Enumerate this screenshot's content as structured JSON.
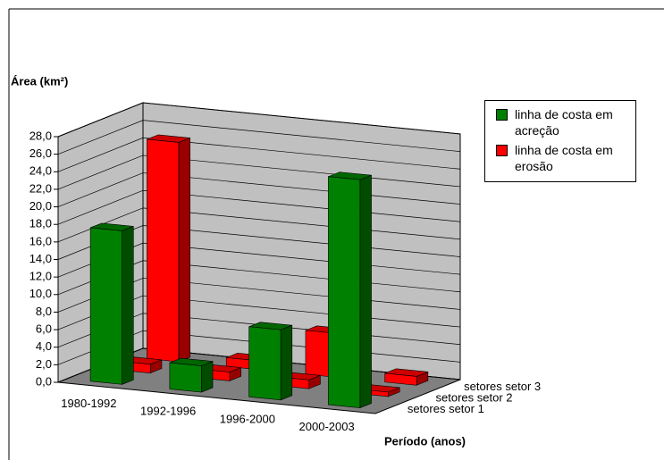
{
  "chart_data": {
    "type": "bar3d",
    "y_label": "Área (km²)",
    "x_label": "Período (anos)",
    "categories": [
      "1980-1992",
      "1992-1996",
      "1996-2000",
      "2000-2003"
    ],
    "series": [
      {
        "name": "setores setor 1",
        "colors": [
          "#008000",
          "#008000",
          "#008000",
          "#008000"
        ],
        "values": [
          17.5,
          3,
          8,
          26
        ]
      },
      {
        "name": "setores setor 2",
        "colors": [
          "#ff0000",
          "#ff0000",
          "#ff0000",
          "#ff0000"
        ],
        "values": [
          1,
          1,
          1,
          0.5
        ]
      },
      {
        "name": "setores setor 3",
        "colors": [
          "#ff0000",
          "#ff0000",
          "#ff0000",
          "#ff0000"
        ],
        "values": [
          25,
          1,
          5,
          1
        ]
      }
    ],
    "legend": [
      {
        "label": "linha de costa em acreção",
        "color": "#008000"
      },
      {
        "label": "linha de costa em erosão",
        "color": "#ff0000"
      }
    ],
    "ylim": [
      0,
      28
    ],
    "yticks": [
      {
        "value": 0,
        "label": "0,0"
      },
      {
        "value": 2,
        "label": "2,0"
      },
      {
        "value": 4,
        "label": "4,0"
      },
      {
        "value": 6,
        "label": "6,0"
      },
      {
        "value": 8,
        "label": "8,0"
      },
      {
        "value": 10,
        "label": "10,0"
      },
      {
        "value": 12,
        "label": "12,0"
      },
      {
        "value": 14,
        "label": "14,0"
      },
      {
        "value": 16,
        "label": "16,0"
      },
      {
        "value": 18,
        "label": "18,0"
      },
      {
        "value": 20,
        "label": "20,0"
      },
      {
        "value": 22,
        "label": "22,0"
      },
      {
        "value": 24,
        "label": "24,0"
      },
      {
        "value": 26,
        "label": "26,0"
      },
      {
        "value": 28,
        "label": "28,0"
      }
    ],
    "grid": true
  }
}
